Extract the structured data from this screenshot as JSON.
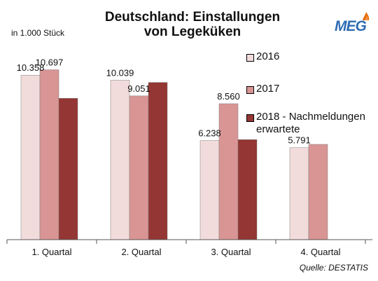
{
  "header": {
    "title_line1": "Deutschland: Einstallungen",
    "title_line2": "von Legeküken",
    "unit": "in 1.000 Stück",
    "logo": "MEG",
    "source": "Quelle: DESTATIS"
  },
  "chart_data": {
    "type": "bar",
    "title": "Deutschland: Einstallungen von Legeküken",
    "ylabel": "in 1.000 Stück",
    "categories": [
      "1. Quartal",
      "2. Quartal",
      "3. Quartal",
      "4. Quartal"
    ],
    "ylim": [
      0,
      12000
    ],
    "grid": false,
    "legend_position": "right",
    "series": [
      {
        "name": "2016",
        "color": "#f2dcdb",
        "values": [
          10358,
          10039,
          6238,
          5791
        ],
        "labels": [
          "10.358",
          "10.039",
          "6.238",
          "5.791"
        ]
      },
      {
        "name": "2017",
        "color": "#d99594",
        "values": [
          10697,
          9051,
          8560,
          6000
        ],
        "labels": [
          "10.697",
          "9.051",
          "8.560",
          ""
        ]
      },
      {
        "name": "2018 - Nachmeldungen erwartete",
        "color": "#943634",
        "values": [
          8900,
          9900,
          6300,
          null
        ],
        "labels": [
          "",
          "",
          "",
          ""
        ]
      }
    ]
  }
}
